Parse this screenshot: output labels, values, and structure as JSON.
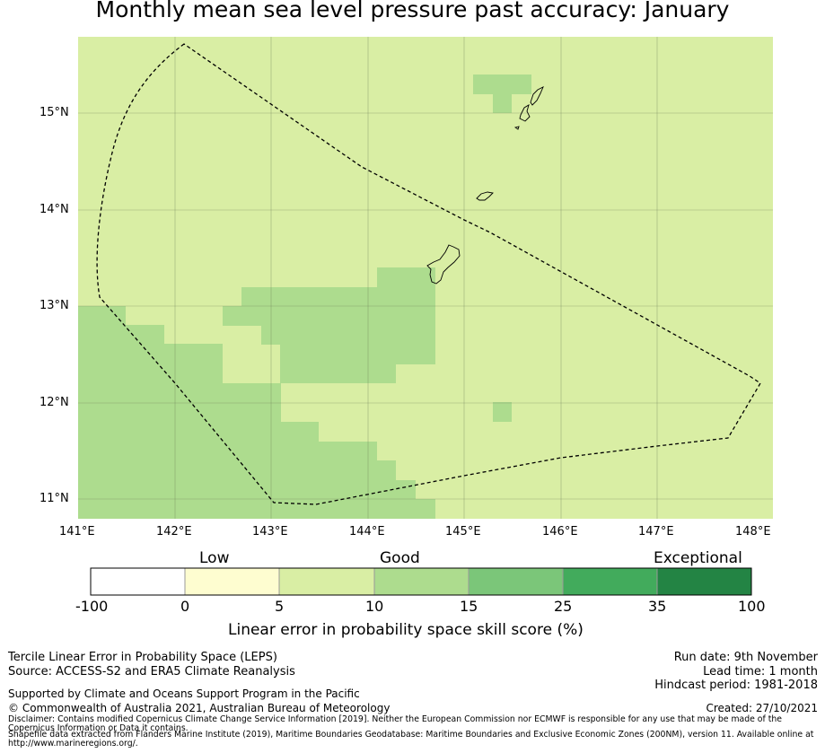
{
  "title": "Monthly mean sea level pressure past accuracy: January",
  "map": {
    "lat_labels": [
      "15°N",
      "14°N",
      "13°N",
      "12°N",
      "11°N"
    ],
    "lon_labels": [
      "141°E",
      "142°E",
      "143°E",
      "144°E",
      "145°E",
      "146°E",
      "147°E",
      "148°E"
    ],
    "lat_range": [
      10.8,
      15.8
    ],
    "lon_range": [
      141.0,
      148.2
    ],
    "background_color": "#d9eea4",
    "boundary": "Exclusive Economic Zone (dashed)"
  },
  "legend": {
    "categories": [
      "Low",
      "Good",
      "Exceptional"
    ],
    "ticks": [
      "-100",
      "0",
      "5",
      "10",
      "15",
      "25",
      "35",
      "100"
    ],
    "colors": [
      "#ffffff",
      "#fefdd0",
      "#d9eea4",
      "#addc8e",
      "#7bc679",
      "#42ab5c",
      "#238444"
    ],
    "axis_title": "Linear error in probability space skill score (%)"
  },
  "footer": {
    "method": "Tercile Linear Error in Probability Space (LEPS)",
    "source": "Source: ACCESS-S2 and ERA5 Climate Reanalysis",
    "support": "Supported by Climate and Oceans Support Program in the Pacific",
    "copyright": "© Commonwealth of Australia 2021, Australian Bureau of Meteorology",
    "disclaimer1": "Disclaimer: Contains modified Copernicus Climate Change Service Information [2019]. Neither the European Commission nor ECMWF is responsible for any use that may be made of the",
    "disclaimer2": "Copernicus Information or Data it contains.",
    "shapefile1": "Shapefile data extracted from Flanders Marine Institute (2019), Maritime Boundaries Geodatabase: Maritime Boundaries and Exclusive Economic Zones (200NM), version 11. Available online at",
    "shapefile2": "http://www.marineregions.org/.",
    "run_date": "Run date: 9th November",
    "lead_time": "Lead time: 1 month",
    "hindcast": "Hindcast period: 1981-2018",
    "created": "Created: 27/10/2021"
  }
}
